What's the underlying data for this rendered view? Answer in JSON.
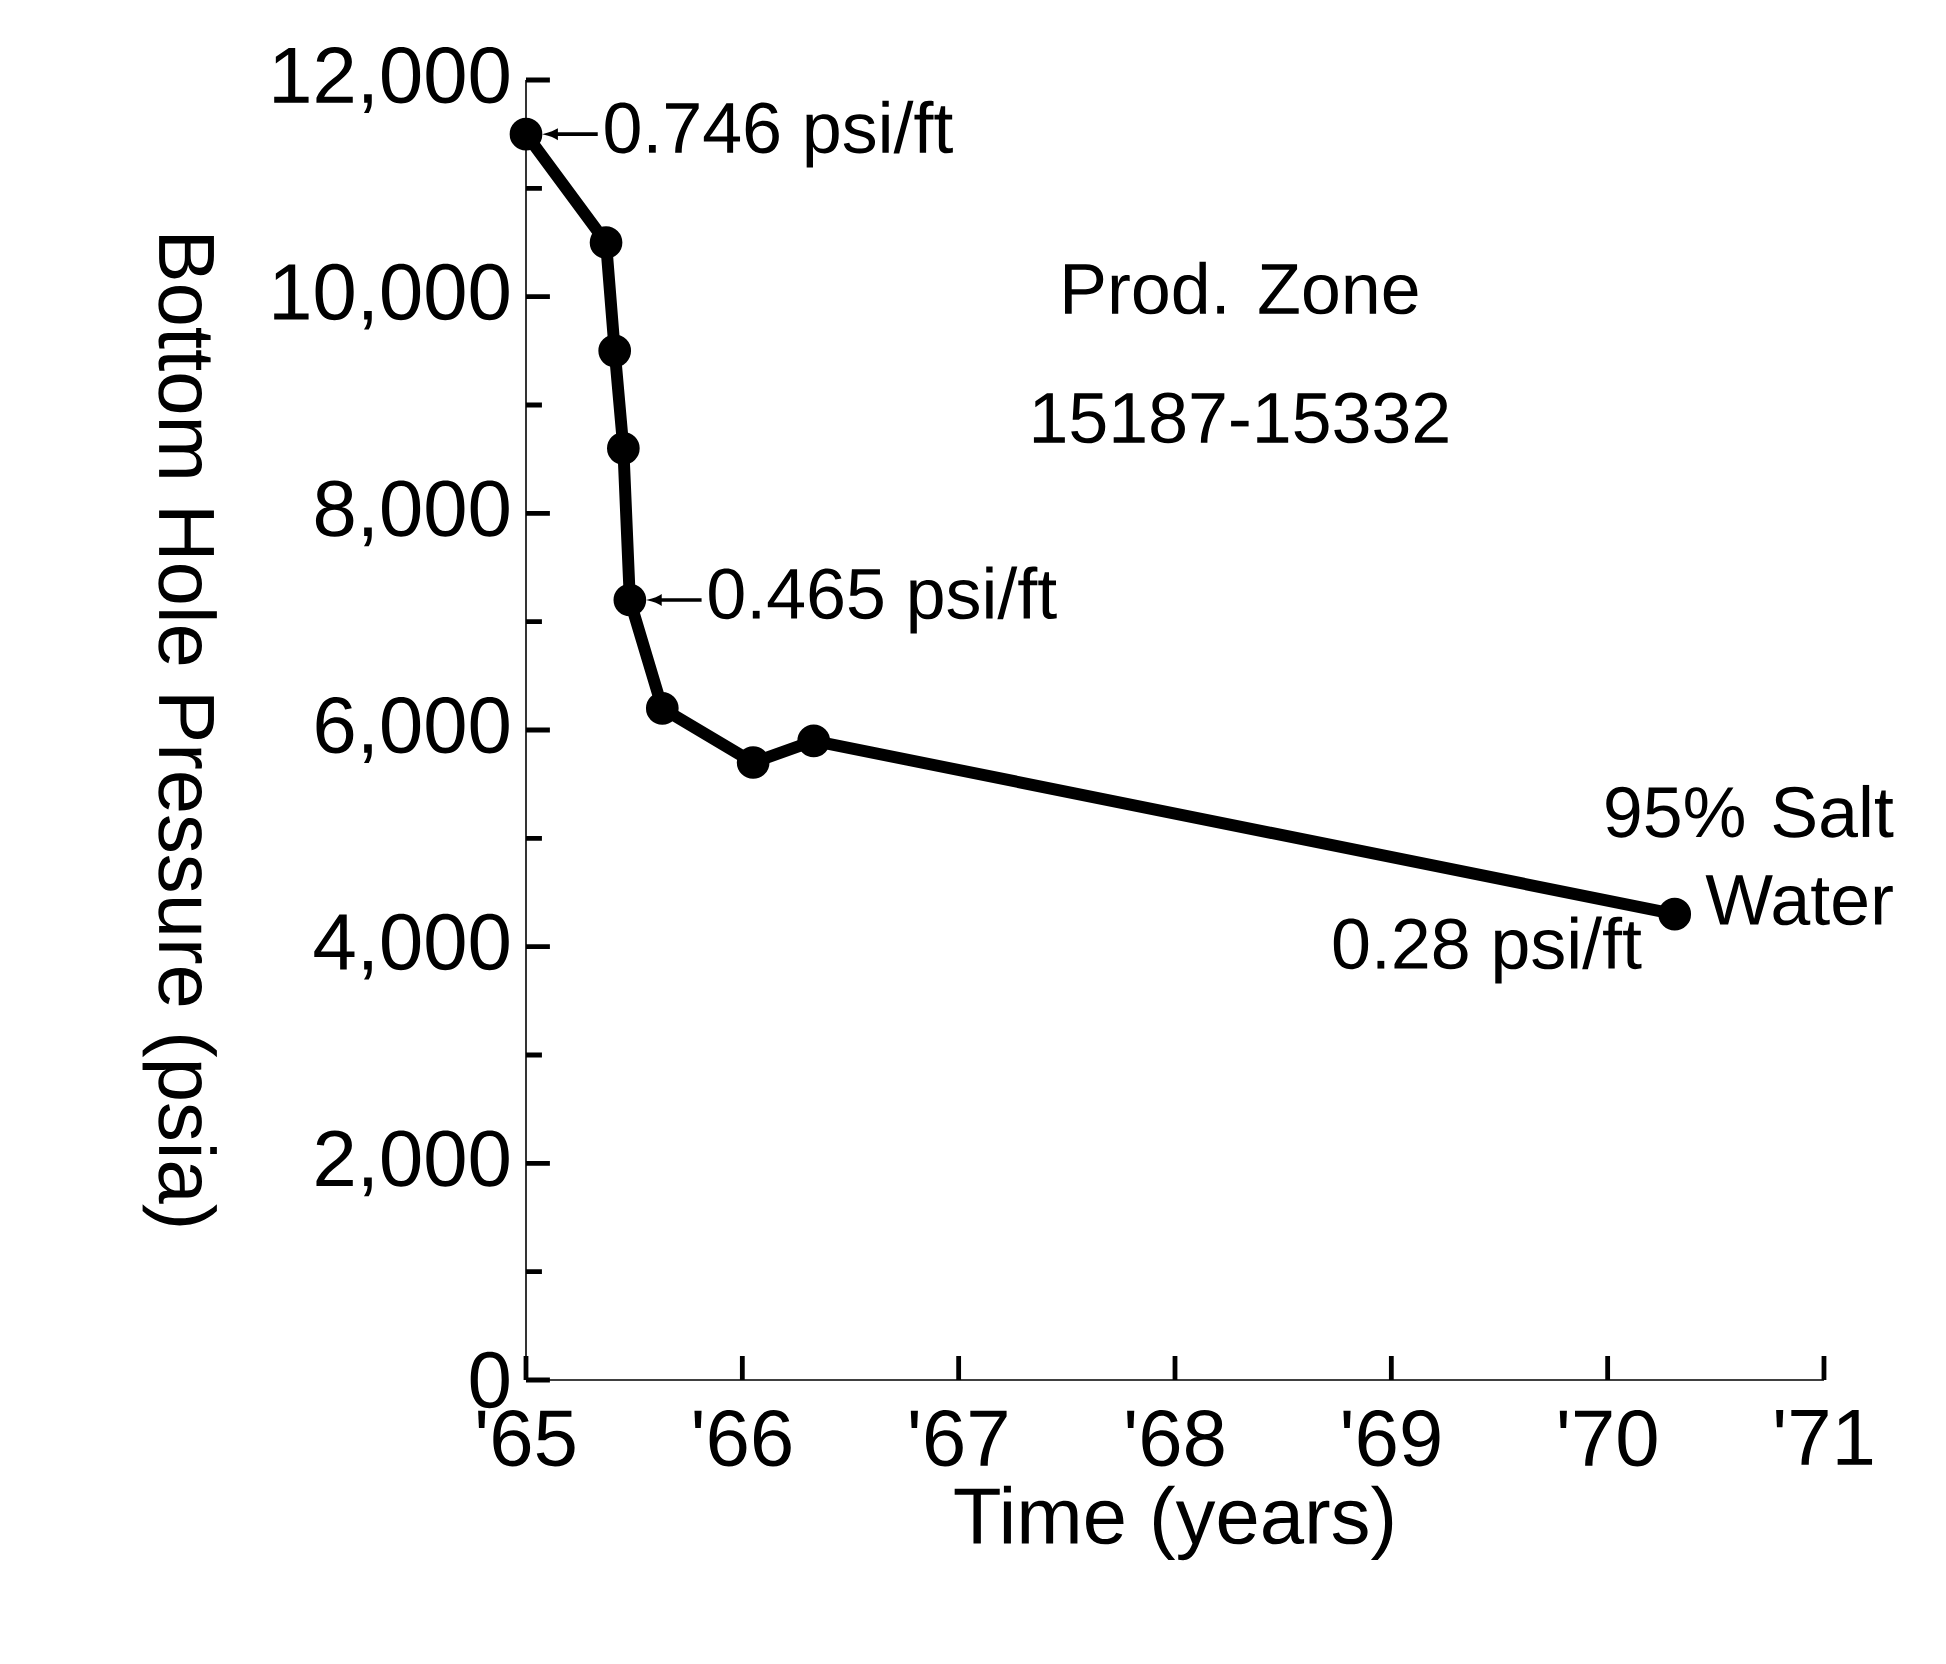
{
  "chart_data": {
    "type": "line",
    "xlabel": "Time (years)",
    "ylabel": "Bottom Hole Pressure (psia)",
    "x": [
      1965.0,
      1965.37,
      1965.41,
      1965.45,
      1965.48,
      1965.63,
      1966.05,
      1966.33,
      1970.31
    ],
    "values": [
      11500,
      10500,
      9500,
      8600,
      7200,
      6200,
      5700,
      5900,
      4300
    ],
    "color": "#000000",
    "marker": "circle",
    "line_style": "solid",
    "xlim": [
      1965,
      1971
    ],
    "xticks": [
      {
        "value": 1965,
        "label": "'65"
      },
      {
        "value": 1966,
        "label": "'66"
      },
      {
        "value": 1967,
        "label": "'67"
      },
      {
        "value": 1968,
        "label": "'68"
      },
      {
        "value": 1969,
        "label": "'69"
      },
      {
        "value": 1970,
        "label": "'70"
      },
      {
        "value": 1971,
        "label": "'71"
      }
    ],
    "ylim": [
      0,
      12000
    ],
    "yticks": [
      0,
      {
        "value": 2000,
        "label": "2,000"
      },
      {
        "value": 4000,
        "label": "4,000"
      },
      {
        "value": 6000,
        "label": "6,000"
      },
      {
        "value": 8000,
        "label": "8,000"
      },
      {
        "value": 10000,
        "label": "10,000"
      },
      {
        "value": 12000,
        "label": "12,000"
      }
    ],
    "grid": false,
    "annotations": [
      {
        "text": "0.746 psi/ft",
        "x": 1965.0,
        "y": 11500
      },
      {
        "text": "0.465 psi/ft",
        "x": 1965.48,
        "y": 7200
      },
      {
        "text": "95% Salt Water",
        "x": 1970.31,
        "y": 4300
      },
      {
        "text": "0.28 psi/ft",
        "x": 1970.31,
        "y": 4300
      },
      "Prod. Zone",
      "15187-15332"
    ]
  }
}
